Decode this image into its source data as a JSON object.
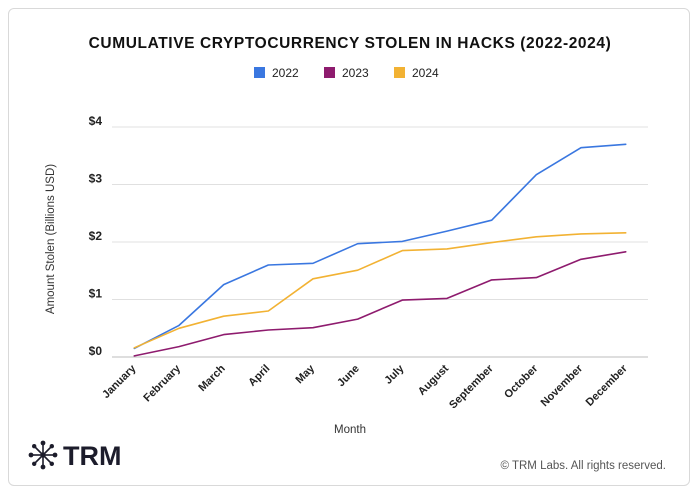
{
  "chart_data": {
    "type": "line",
    "title": "CUMULATIVE CRYPTOCURRENCY STOLEN IN HACKS (2022-2024)",
    "xlabel": "Month",
    "ylabel": "Amount Stolen (Billions USD)",
    "categories": [
      "January",
      "February",
      "March",
      "April",
      "May",
      "June",
      "July",
      "August",
      "September",
      "October",
      "November",
      "December"
    ],
    "ylim": [
      0,
      4
    ],
    "yticks": [
      0,
      1,
      2,
      3,
      4
    ],
    "ytick_labels": [
      "$0",
      "$1",
      "$2",
      "$3",
      "$4"
    ],
    "grid": true,
    "legend_position": "top-center",
    "series": [
      {
        "name": "2022",
        "color": "#3a77e0",
        "values": [
          0.15,
          0.55,
          1.26,
          1.6,
          1.63,
          1.97,
          2.01,
          2.19,
          2.38,
          3.17,
          3.64,
          3.7
        ]
      },
      {
        "name": "2023",
        "color": "#8e1b6e",
        "values": [
          0.02,
          0.18,
          0.39,
          0.47,
          0.51,
          0.66,
          0.99,
          1.02,
          1.34,
          1.38,
          1.7,
          1.83
        ]
      },
      {
        "name": "2024",
        "color": "#f2b233",
        "values": [
          0.16,
          0.5,
          0.71,
          0.8,
          1.36,
          1.51,
          1.85,
          1.88,
          1.99,
          2.09,
          2.14,
          2.16
        ]
      }
    ]
  },
  "branding": {
    "logo_text": "TRM",
    "logo_icon": "network-node-icon",
    "copyright": "© TRM Labs. All rights reserved."
  }
}
